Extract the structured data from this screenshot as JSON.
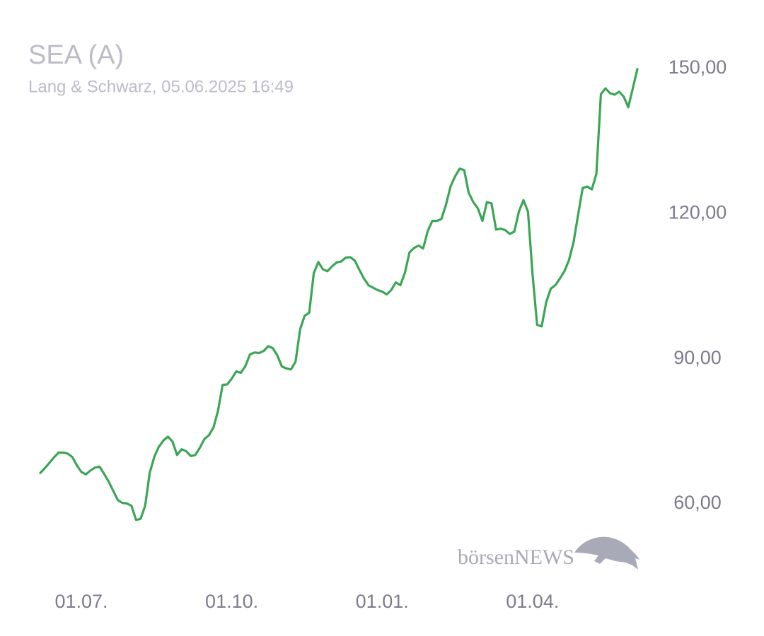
{
  "chart_data": {
    "type": "line",
    "title": "SEA (A)",
    "subtitle": "Lang & Schwarz, 05.06.2025 16:49",
    "watermark": "börsenNEWS",
    "categories": [
      null,
      null,
      null,
      null,
      null,
      null,
      null,
      null,
      null,
      "01.07.",
      null,
      null,
      null,
      null,
      null,
      null,
      null,
      null,
      null,
      null,
      null,
      null,
      null,
      null,
      null,
      null,
      null,
      null,
      null,
      null,
      null,
      null,
      null,
      null,
      null,
      null,
      null,
      null,
      null,
      null,
      null,
      null,
      "01.10.",
      null,
      null,
      null,
      null,
      null,
      null,
      null,
      null,
      null,
      null,
      null,
      null,
      null,
      null,
      null,
      null,
      null,
      null,
      null,
      null,
      null,
      null,
      null,
      null,
      null,
      null,
      null,
      null,
      null,
      null,
      null,
      null,
      "01.01.",
      null,
      null,
      null,
      null,
      null,
      null,
      null,
      null,
      null,
      null,
      null,
      null,
      null,
      null,
      null,
      null,
      null,
      null,
      null,
      null,
      null,
      null,
      null,
      null,
      null,
      null,
      null,
      null,
      null,
      null,
      null,
      null,
      "01.04.",
      null,
      null,
      null,
      null,
      null,
      null,
      null,
      null,
      null,
      null,
      null,
      null,
      null,
      null,
      null,
      null,
      null,
      null,
      null,
      null,
      null,
      null,
      null
    ],
    "values": [
      66.4,
      67.4,
      68.5,
      69.6,
      70.6,
      70.6,
      70.4,
      69.7,
      68.0,
      66.6,
      66.1,
      66.9,
      67.5,
      67.7,
      66.2,
      64.6,
      62.7,
      60.8,
      60.2,
      60.1,
      59.6,
      56.7,
      56.9,
      59.6,
      66.4,
      69.7,
      71.8,
      73.1,
      73.9,
      72.9,
      70.1,
      71.3,
      70.9,
      69.9,
      70.1,
      71.6,
      73.4,
      74.2,
      75.8,
      79.3,
      84.6,
      84.7,
      85.9,
      87.4,
      87.1,
      88.5,
      90.9,
      91.3,
      91.2,
      91.6,
      92.6,
      92.2,
      90.7,
      88.4,
      88.0,
      87.8,
      89.4,
      96.1,
      98.9,
      99.5,
      107.7,
      110.0,
      108.5,
      108.1,
      109.1,
      109.9,
      110.1,
      110.9,
      111.0,
      110.3,
      108.4,
      106.6,
      105.2,
      104.7,
      104.2,
      103.9,
      103.3,
      104.2,
      105.8,
      105.2,
      107.8,
      112.0,
      112.9,
      113.4,
      112.8,
      116.4,
      118.5,
      118.5,
      118.9,
      121.8,
      125.6,
      127.7,
      129.3,
      129.0,
      124.3,
      122.4,
      121.1,
      118.5,
      122.4,
      122.1,
      116.7,
      116.9,
      116.6,
      115.8,
      116.3,
      120.4,
      122.8,
      120.4,
      107.5,
      97.0,
      96.7,
      101.7,
      104.5,
      105.2,
      106.6,
      108.1,
      110.4,
      114.1,
      119.8,
      125.3,
      125.6,
      125.0,
      128.2,
      144.7,
      145.9,
      144.9,
      144.6,
      145.2,
      144.2,
      142.0,
      145.9,
      149.9
    ],
    "color": "#3aa655",
    "ylim": [
      50,
      155
    ],
    "yticks": [
      {
        "value": 60,
        "label": "60,00"
      },
      {
        "value": 90,
        "label": "90,00"
      },
      {
        "value": 120,
        "label": "120,00"
      },
      {
        "value": 150,
        "label": "150,00"
      }
    ],
    "grid": false
  }
}
